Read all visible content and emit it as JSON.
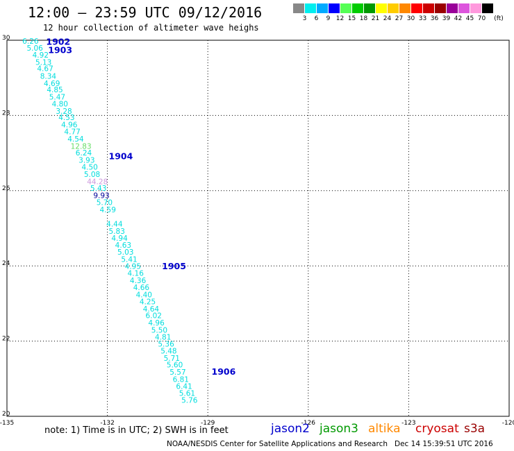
{
  "header": {
    "title": "12:00 – 23:59 UTC 09/12/2016",
    "subtitle": "12 hour collection of altimeter wave heighs"
  },
  "legend": {
    "unit": "(ft)",
    "bins": [
      {
        "label": "3",
        "color": "#888888"
      },
      {
        "label": "6",
        "color": "#00eeee"
      },
      {
        "label": "9",
        "color": "#00aaff"
      },
      {
        "label": "12",
        "color": "#0000ff"
      },
      {
        "label": "15",
        "color": "#55ff55"
      },
      {
        "label": "18",
        "color": "#00cc00"
      },
      {
        "label": "21",
        "color": "#009900"
      },
      {
        "label": "24",
        "color": "#ffff00"
      },
      {
        "label": "27",
        "color": "#ffcc00"
      },
      {
        "label": "30",
        "color": "#ff8800"
      },
      {
        "label": "33",
        "color": "#ff0000"
      },
      {
        "label": "36",
        "color": "#cc0000"
      },
      {
        "label": "39",
        "color": "#990000"
      },
      {
        "label": "42",
        "color": "#990099"
      },
      {
        "label": "45",
        "color": "#dd55dd"
      },
      {
        "label": "70",
        "color": "#ff99dd"
      },
      {
        "label": "",
        "color": "#000000"
      }
    ]
  },
  "map": {
    "lon_range": [
      -135,
      -120
    ],
    "lat_range": [
      20,
      30
    ],
    "x_ticks": [
      "-135",
      "-132",
      "-129",
      "-126",
      "-123",
      "-120"
    ],
    "y_ticks": [
      "30",
      "28",
      "26",
      "24",
      "22",
      "20"
    ],
    "grid": true,
    "colors": {
      "cyan": "#00dddd",
      "green": "#66dd66",
      "lavender": "#cc99dd",
      "navy": "#000099",
      "time": "#0000cc"
    },
    "track": [
      {
        "lon": -134.54,
        "lat": 29.98,
        "text": "6.26",
        "color": "cyan"
      },
      {
        "lon": -134.41,
        "lat": 29.8,
        "text": "5.06",
        "color": "cyan"
      },
      {
        "lon": -134.24,
        "lat": 29.61,
        "text": "4.92",
        "color": "cyan"
      },
      {
        "lon": -134.15,
        "lat": 29.42,
        "text": "5.13",
        "color": "cyan"
      },
      {
        "lon": -134.1,
        "lat": 29.25,
        "text": "4.67",
        "color": "cyan"
      },
      {
        "lon": -134.01,
        "lat": 29.05,
        "text": "8.34",
        "color": "cyan"
      },
      {
        "lon": -133.9,
        "lat": 28.86,
        "text": "4.69",
        "color": "cyan"
      },
      {
        "lon": -133.81,
        "lat": 28.69,
        "text": "4.85",
        "color": "cyan"
      },
      {
        "lon": -133.74,
        "lat": 28.5,
        "text": "5.47",
        "color": "cyan"
      },
      {
        "lon": -133.66,
        "lat": 28.31,
        "text": "4.80",
        "color": "cyan"
      },
      {
        "lon": -133.54,
        "lat": 28.12,
        "text": "3.28",
        "color": "cyan"
      },
      {
        "lon": -133.46,
        "lat": 27.95,
        "text": "4.53",
        "color": "cyan"
      },
      {
        "lon": -133.38,
        "lat": 27.76,
        "text": "4.96",
        "color": "cyan"
      },
      {
        "lon": -133.29,
        "lat": 27.57,
        "text": "4.77",
        "color": "cyan"
      },
      {
        "lon": -133.19,
        "lat": 27.38,
        "text": "4.54",
        "color": "cyan"
      },
      {
        "lon": -133.1,
        "lat": 27.19,
        "text": "12.83",
        "color": "green"
      },
      {
        "lon": -132.95,
        "lat": 27.01,
        "text": "6.24",
        "color": "cyan"
      },
      {
        "lon": -132.86,
        "lat": 26.82,
        "text": "3.93",
        "color": "cyan"
      },
      {
        "lon": -132.77,
        "lat": 26.63,
        "text": "4.50",
        "color": "cyan"
      },
      {
        "lon": -132.7,
        "lat": 26.44,
        "text": "5.08",
        "color": "cyan"
      },
      {
        "lon": -132.61,
        "lat": 26.25,
        "text": "44.28",
        "color": "lavender"
      },
      {
        "lon": -132.51,
        "lat": 26.07,
        "text": "5.43",
        "color": "cyan"
      },
      {
        "lon": -132.42,
        "lat": 25.88,
        "text": "9.93",
        "color": "navy"
      },
      {
        "lon": -132.33,
        "lat": 25.69,
        "text": "5.70",
        "color": "cyan"
      },
      {
        "lon": -132.23,
        "lat": 25.5,
        "text": "4.59",
        "color": "cyan"
      },
      {
        "lon": -132.03,
        "lat": 25.12,
        "text": "4.44",
        "color": "cyan"
      },
      {
        "lon": -131.96,
        "lat": 24.93,
        "text": "5.83",
        "color": "cyan"
      },
      {
        "lon": -131.88,
        "lat": 24.74,
        "text": "4.94",
        "color": "cyan"
      },
      {
        "lon": -131.77,
        "lat": 24.56,
        "text": "4.63",
        "color": "cyan"
      },
      {
        "lon": -131.7,
        "lat": 24.37,
        "text": "5.03",
        "color": "cyan"
      },
      {
        "lon": -131.59,
        "lat": 24.18,
        "text": "5.41",
        "color": "cyan"
      },
      {
        "lon": -131.48,
        "lat": 23.99,
        "text": "4.95",
        "color": "cyan"
      },
      {
        "lon": -131.4,
        "lat": 23.81,
        "text": "4.16",
        "color": "cyan"
      },
      {
        "lon": -131.33,
        "lat": 23.62,
        "text": "4.36",
        "color": "cyan"
      },
      {
        "lon": -131.23,
        "lat": 23.43,
        "text": "4.66",
        "color": "cyan"
      },
      {
        "lon": -131.15,
        "lat": 23.24,
        "text": "4.40",
        "color": "cyan"
      },
      {
        "lon": -131.04,
        "lat": 23.05,
        "text": "4.25",
        "color": "cyan"
      },
      {
        "lon": -130.94,
        "lat": 22.86,
        "text": "4.64",
        "color": "cyan"
      },
      {
        "lon": -130.86,
        "lat": 22.68,
        "text": "6.02",
        "color": "cyan"
      },
      {
        "lon": -130.78,
        "lat": 22.49,
        "text": "4.96",
        "color": "cyan"
      },
      {
        "lon": -130.69,
        "lat": 22.3,
        "text": "5.50",
        "color": "cyan"
      },
      {
        "lon": -130.58,
        "lat": 22.11,
        "text": "4.81",
        "color": "cyan"
      },
      {
        "lon": -130.49,
        "lat": 21.93,
        "text": "5.36",
        "color": "cyan"
      },
      {
        "lon": -130.41,
        "lat": 21.74,
        "text": "5.48",
        "color": "cyan"
      },
      {
        "lon": -130.32,
        "lat": 21.55,
        "text": "5.71",
        "color": "cyan"
      },
      {
        "lon": -130.23,
        "lat": 21.37,
        "text": "5.60",
        "color": "cyan"
      },
      {
        "lon": -130.14,
        "lat": 21.18,
        "text": "5.57",
        "color": "cyan"
      },
      {
        "lon": -130.05,
        "lat": 20.99,
        "text": "6.81",
        "color": "cyan"
      },
      {
        "lon": -129.95,
        "lat": 20.8,
        "text": "6.41",
        "color": "cyan"
      },
      {
        "lon": -129.86,
        "lat": 20.62,
        "text": "5.61",
        "color": "cyan"
      },
      {
        "lon": -129.79,
        "lat": 20.43,
        "text": "5.76",
        "color": "cyan"
      }
    ],
    "time_labels": [
      {
        "lon": -133.83,
        "lat": 29.97,
        "text": "1902"
      },
      {
        "lon": -133.77,
        "lat": 29.75,
        "text": "1903"
      },
      {
        "lon": -131.96,
        "lat": 26.93,
        "text": "1904"
      },
      {
        "lon": -130.37,
        "lat": 24.0,
        "text": "1905"
      },
      {
        "lon": -128.89,
        "lat": 21.2,
        "text": "1906"
      }
    ]
  },
  "footer": {
    "note": "note: 1) Time is in UTC; 2) SWH is in feet",
    "credit": "NOAA/NESDIS Center for Satellite Applications and Research   Dec 14 15:39:51 UTC 2016",
    "satellites": [
      {
        "name": "jason2",
        "color": "#0000cc"
      },
      {
        "name": "jason3",
        "color": "#009900"
      },
      {
        "name": "altika",
        "color": "#ff8800"
      },
      {
        "name": "cryosat",
        "color": "#cc0000"
      },
      {
        "name": "s3a",
        "color": "#990000"
      }
    ]
  }
}
